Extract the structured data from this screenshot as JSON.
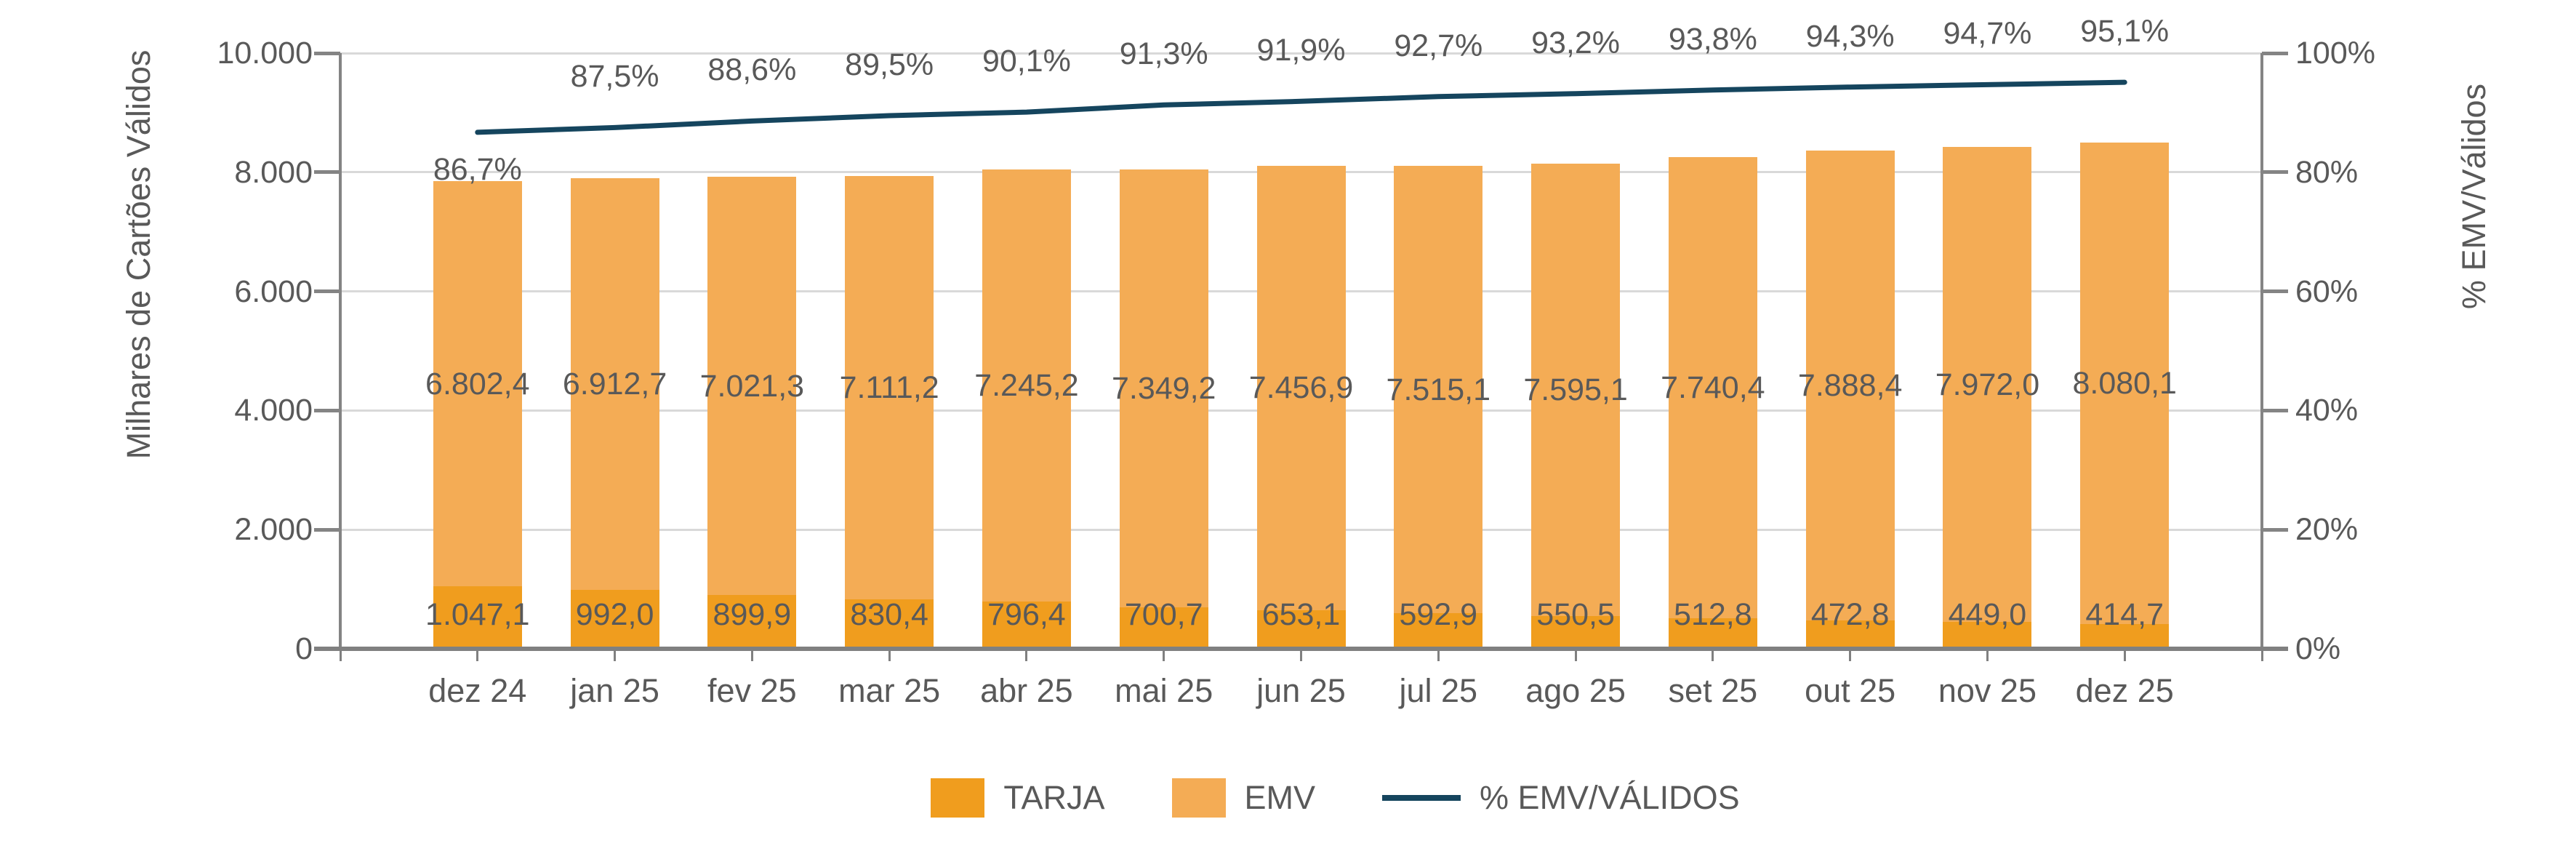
{
  "chart": {
    "left_axis_title": "Milhares de Cartões Válidos",
    "right_axis_title": "% EMV/Válidos",
    "colors": {
      "tarja": "#F09D1E",
      "emv": "#F4AC55",
      "line": "#15455E",
      "grid": "#D9D9D9",
      "axis": "#808080",
      "text": "#595959"
    }
  },
  "chart_data": {
    "type": "bar",
    "subtype": "stacked-bars-with-line-overlay",
    "categories": [
      "dez 24",
      "jan 25",
      "fev 25",
      "mar 25",
      "abr 25",
      "mai 25",
      "jun 25",
      "jul 25",
      "ago 25",
      "set 25",
      "out 25",
      "nov 25",
      "dez 25"
    ],
    "series": [
      {
        "name": "TARJA",
        "type": "bar",
        "color": "#F09D1E",
        "values": [
          1047.1,
          992.0,
          899.9,
          830.4,
          796.4,
          700.7,
          653.1,
          592.9,
          550.5,
          512.8,
          472.8,
          449.0,
          414.7
        ],
        "labels": [
          "1.047,1",
          "992,0",
          "899,9",
          "830,4",
          "796,4",
          "700,7",
          "653,1",
          "592,9",
          "550,5",
          "512,8",
          "472,8",
          "449,0",
          "414,7"
        ]
      },
      {
        "name": "EMV",
        "type": "bar",
        "color": "#F4AC55",
        "values": [
          6802.4,
          6912.7,
          7021.3,
          7111.2,
          7245.2,
          7349.2,
          7456.9,
          7515.1,
          7595.1,
          7740.4,
          7888.4,
          7972.0,
          8080.1
        ],
        "labels": [
          "6.802,4",
          "6.912,7",
          "7.021,3",
          "7.111,2",
          "7.245,2",
          "7.349,2",
          "7.456,9",
          "7.515,1",
          "7.595,1",
          "7.740,4",
          "7.888,4",
          "7.972,0",
          "8.080,1"
        ]
      },
      {
        "name": "% EMV/VÁLIDOS",
        "type": "line",
        "axis": "right",
        "color": "#15455E",
        "values": [
          86.7,
          87.5,
          88.6,
          89.5,
          90.1,
          91.3,
          91.9,
          92.7,
          93.2,
          93.8,
          94.3,
          94.7,
          95.1
        ],
        "labels": [
          "86,7%",
          "87,5%",
          "88,6%",
          "89,5%",
          "90,1%",
          "91,3%",
          "91,9%",
          "92,7%",
          "93,2%",
          "93,8%",
          "94,3%",
          "94,7%",
          "95,1%"
        ]
      }
    ],
    "title": "",
    "xlabel": "",
    "ylabel": "Milhares de Cartões Válidos",
    "y2label": "% EMV/Válidos",
    "left_axis": {
      "ticks": [
        "0",
        "2.000",
        "4.000",
        "6.000",
        "8.000",
        "10.000"
      ],
      "range": [
        0,
        10000
      ]
    },
    "right_axis": {
      "ticks": [
        "0%",
        "20%",
        "40%",
        "60%",
        "80%",
        "100%"
      ],
      "range": [
        0,
        100
      ]
    },
    "grid": true,
    "legend_position": "bottom"
  }
}
